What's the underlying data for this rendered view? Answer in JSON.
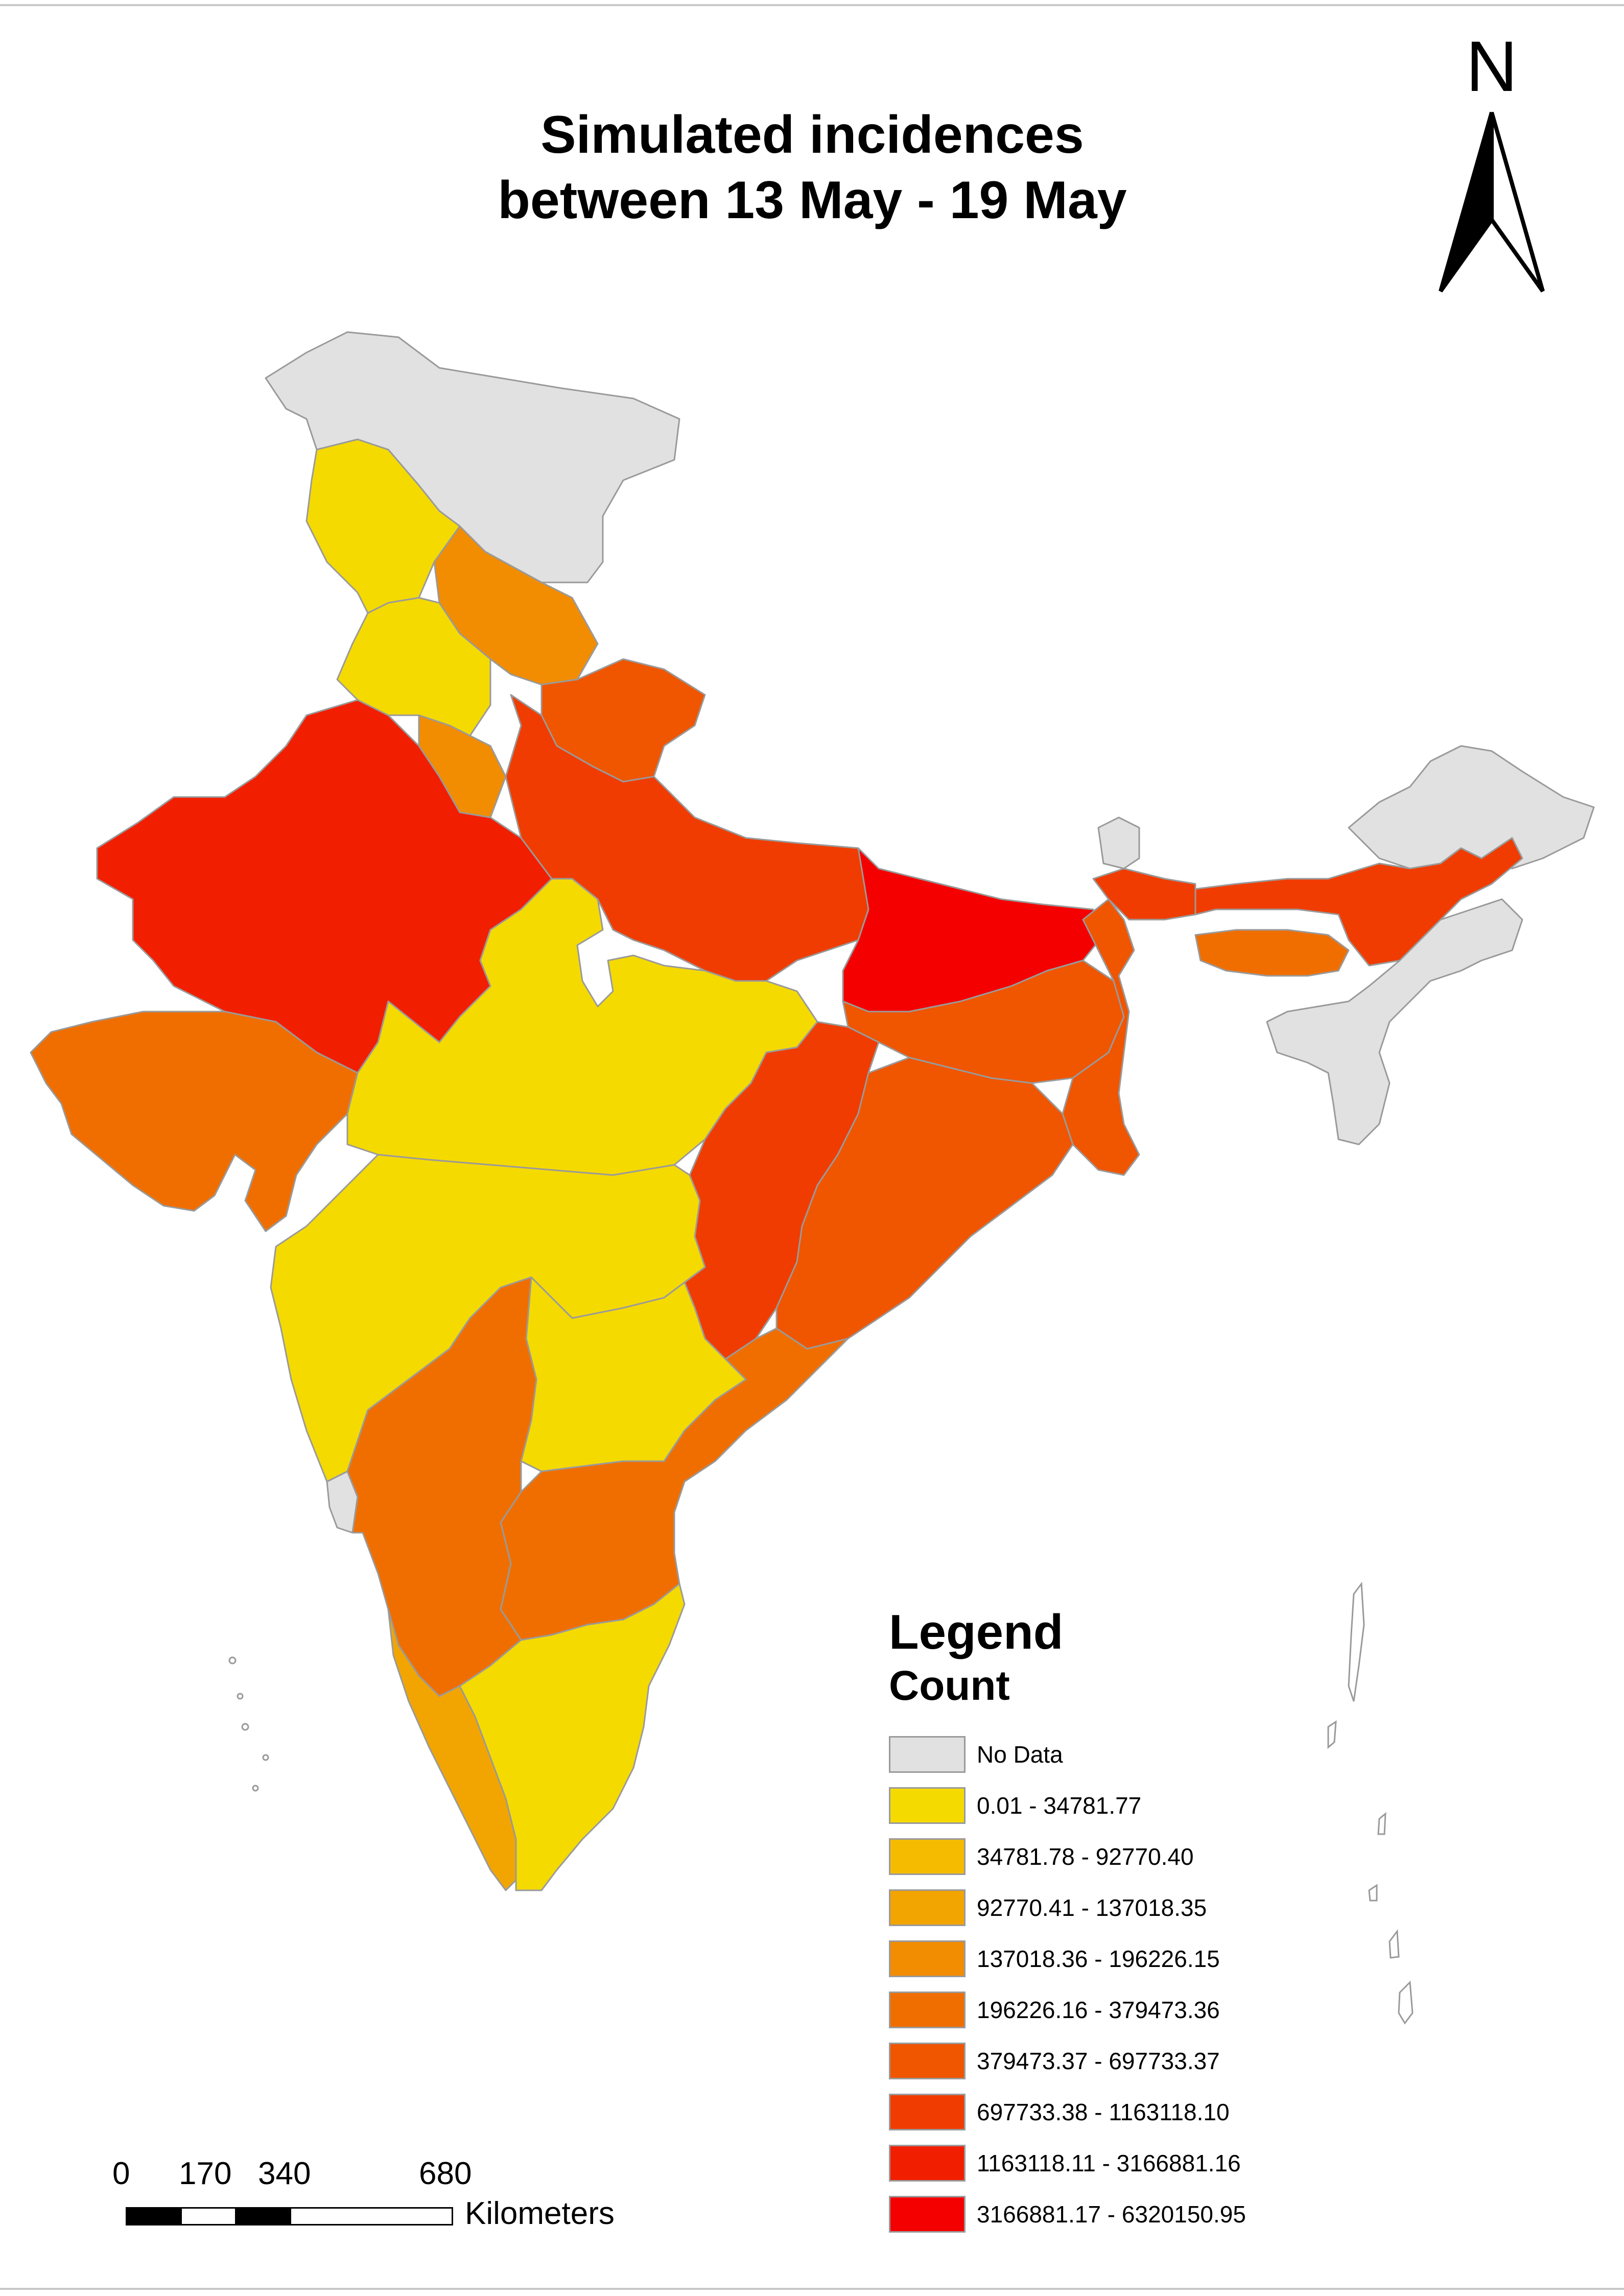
{
  "title": {
    "line1": "Simulated incidences",
    "line2": "between 13 May - 19 May"
  },
  "north_arrow": {
    "label": "N",
    "icon": "north-arrow-icon"
  },
  "legend": {
    "title": "Legend",
    "subtitle": "Count",
    "items": [
      {
        "label": "No Data",
        "color": "#e1e1e1"
      },
      {
        "label": "0.01 - 34781.77",
        "color": "#f5da00"
      },
      {
        "label": "34781.78 - 92770.40",
        "color": "#f5bb00"
      },
      {
        "label": "92770.41 - 137018.35",
        "color": "#f2a500"
      },
      {
        "label": "137018.36 - 196226.15",
        "color": "#f28c00"
      },
      {
        "label": "196226.16 - 379473.36",
        "color": "#f06e00"
      },
      {
        "label": "379473.37 - 697733.37",
        "color": "#f05500"
      },
      {
        "label": "697733.38 - 1163118.10",
        "color": "#f03c00"
      },
      {
        "label": "1163118.11 - 3166881.16",
        "color": "#f21e00"
      },
      {
        "label": "3166881.17 - 6320150.95",
        "color": "#f50000"
      }
    ]
  },
  "scale_bar": {
    "ticks": [
      "0",
      "170",
      "340",
      "680"
    ],
    "units": "Kilometers"
  },
  "colors": {
    "boundary": "#9a9a9a",
    "no_data": "#e1e1e1"
  }
}
